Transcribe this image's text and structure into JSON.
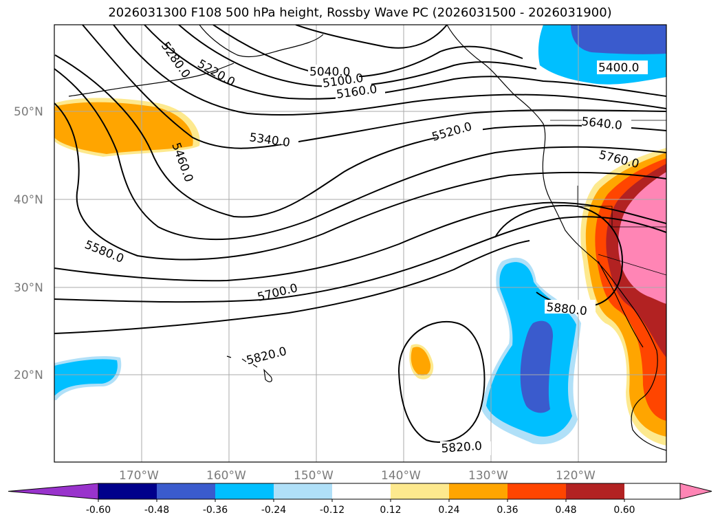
{
  "title": "2026031300 F108 500 hPa height, Rossby Wave PC (2026031500 - 2026031900)",
  "lat_labels": [
    "50°N",
    "40°N",
    "30°N",
    "20°N"
  ],
  "lon_labels": [
    "170°W",
    "160°W",
    "150°W",
    "140°W",
    "130°W",
    "120°W"
  ],
  "contour_labels": [
    "5040.0",
    "5100.0",
    "5160.0",
    "5280.0",
    "5220.0",
    "5340.0",
    "5400.0",
    "5460.0",
    "5520.0",
    "5580.0",
    "5640.0",
    "5700.0",
    "5760.0",
    "5820.0",
    "5880.0",
    "5820.0"
  ],
  "colorbar": {
    "ticks": [
      "-0.60",
      "-0.48",
      "-0.36",
      "-0.24",
      "-0.12",
      "0.12",
      "0.24",
      "0.36",
      "0.48",
      "0.60"
    ],
    "colors": [
      "#9933cc",
      "#00008b",
      "#3a5bcd",
      "#00bfff",
      "#b0e0f8",
      "#ffffff",
      "#fde98e",
      "#ffa500",
      "#ff4500",
      "#b22222",
      "#ff85b5"
    ]
  },
  "chart_data": {
    "type": "heatmap",
    "title": "2026031300 F108 500 hPa height, Rossby Wave PC (2026031500 - 2026031900)",
    "lon_range": [
      -180,
      -110
    ],
    "lat_range": [
      10,
      60
    ],
    "contour_values": [
      5040,
      5100,
      5160,
      5220,
      5280,
      5340,
      5400,
      5460,
      5520,
      5580,
      5640,
      5700,
      5760,
      5820,
      5880
    ],
    "colorbar_levels": [
      -0.6,
      -0.48,
      -0.36,
      -0.24,
      -0.12,
      0.12,
      0.24,
      0.36,
      0.48,
      0.6
    ],
    "grid": true
  }
}
